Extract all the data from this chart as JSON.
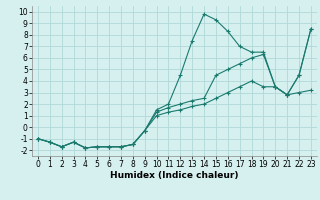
{
  "x": [
    0,
    1,
    2,
    3,
    4,
    5,
    6,
    7,
    8,
    9,
    10,
    11,
    12,
    13,
    14,
    15,
    16,
    17,
    18,
    19,
    20,
    21,
    22,
    23
  ],
  "line1": [
    -1.0,
    -1.3,
    -1.7,
    -1.3,
    -1.8,
    -1.7,
    -1.7,
    -1.7,
    -1.5,
    -0.3,
    1.5,
    2.0,
    4.5,
    7.5,
    9.8,
    9.3,
    8.3,
    7.0,
    6.5,
    6.5,
    3.5,
    2.8,
    4.5,
    8.5
  ],
  "line2": [
    -1.0,
    -1.3,
    -1.7,
    -1.3,
    -1.8,
    -1.7,
    -1.7,
    -1.7,
    -1.5,
    -0.3,
    1.3,
    1.7,
    2.0,
    2.3,
    2.5,
    4.5,
    5.0,
    5.5,
    6.0,
    6.3,
    3.5,
    2.8,
    4.5,
    8.5
  ],
  "line3": [
    -1.0,
    -1.3,
    -1.7,
    -1.3,
    -1.8,
    -1.7,
    -1.7,
    -1.7,
    -1.5,
    -0.3,
    1.0,
    1.3,
    1.5,
    1.8,
    2.0,
    2.5,
    3.0,
    3.5,
    4.0,
    3.5,
    3.5,
    2.8,
    3.0,
    3.2
  ],
  "color": "#1a7a6e",
  "bg_color": "#d6f0f0",
  "grid_color": "#b0d8d8",
  "xlabel": "Humidex (Indice chaleur)",
  "ylim": [
    -2.5,
    10.5
  ],
  "xlim": [
    -0.5,
    23.5
  ],
  "yticks": [
    -2,
    -1,
    0,
    1,
    2,
    3,
    4,
    5,
    6,
    7,
    8,
    9,
    10
  ],
  "xticks": [
    0,
    1,
    2,
    3,
    4,
    5,
    6,
    7,
    8,
    9,
    10,
    11,
    12,
    13,
    14,
    15,
    16,
    17,
    18,
    19,
    20,
    21,
    22,
    23
  ],
  "xlabel_fontsize": 6.5,
  "tick_fontsize": 5.5,
  "line_width": 0.8,
  "marker_size": 3.0
}
